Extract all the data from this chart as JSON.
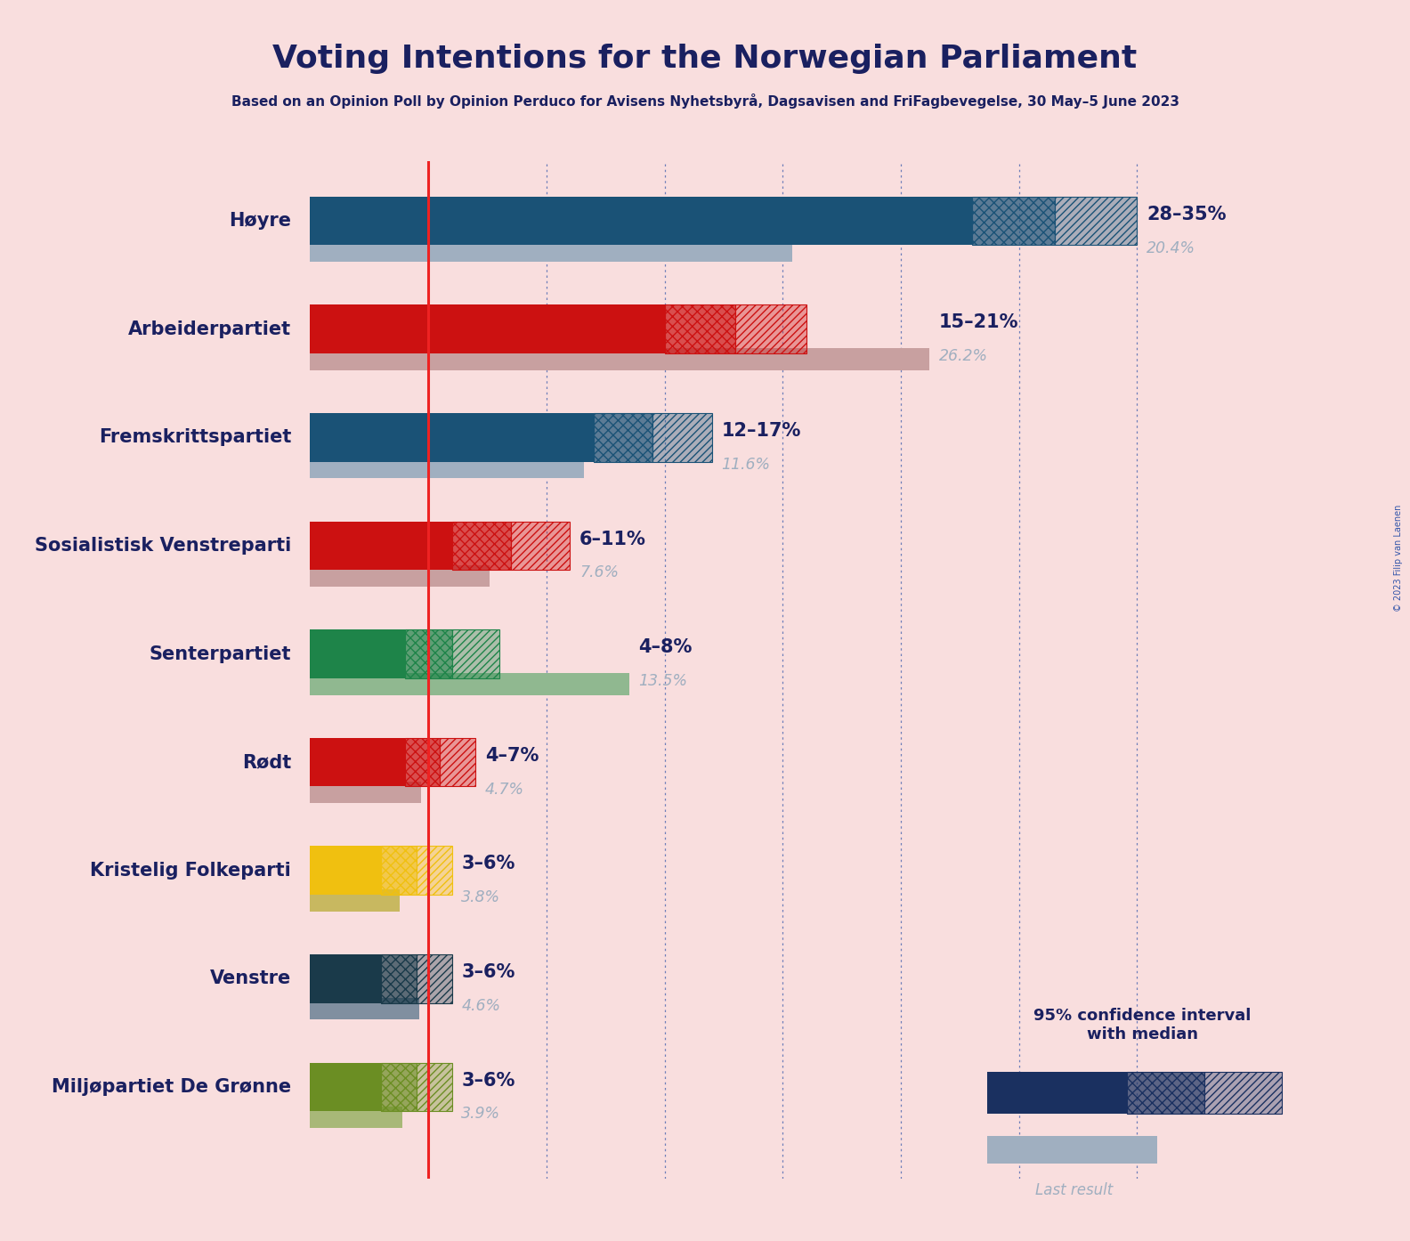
{
  "title": "Voting Intentions for the Norwegian Parliament",
  "subtitle": "Based on an Opinion Poll by Opinion Perduco for Avisens Nyhetsbyrå, Dagsavisen and FriFagbevegelse, 30 May–5 June 2023",
  "background_color": "#f9dede",
  "parties": [
    "Høyre",
    "Arbeiderpartiet",
    "Fremskrittspartiet",
    "Sosialistisk Venstreparti",
    "Senterpartiet",
    "Rødt",
    "Kristelig Folkeparti",
    "Venstre",
    "Miljøpartiet De Grønne"
  ],
  "ci_low": [
    28,
    15,
    12,
    6,
    4,
    4,
    3,
    3,
    3
  ],
  "ci_high": [
    35,
    21,
    17,
    11,
    8,
    7,
    6,
    6,
    6
  ],
  "last_result": [
    20.4,
    26.2,
    11.6,
    7.6,
    13.5,
    4.7,
    3.8,
    4.6,
    3.9
  ],
  "range_labels": [
    "28–35%",
    "15–21%",
    "12–17%",
    "6–11%",
    "4–8%",
    "4–7%",
    "3–6%",
    "3–6%",
    "3–6%"
  ],
  "last_labels": [
    "20.4%",
    "26.2%",
    "11.6%",
    "7.6%",
    "13.5%",
    "4.7%",
    "3.8%",
    "4.6%",
    "3.9%"
  ],
  "colors": [
    "#1a5276",
    "#cc1111",
    "#1a5276",
    "#cc1111",
    "#1e8449",
    "#cc1111",
    "#f0c010",
    "#1a3a4a",
    "#6b8e23"
  ],
  "last_result_colors": [
    "#a0afc0",
    "#c8a0a0",
    "#a0afc0",
    "#c8a0a0",
    "#90b890",
    "#c8a0a0",
    "#c8b860",
    "#808fa0",
    "#a8b878"
  ],
  "title_color": "#1a2060",
  "subtitle_color": "#1a2060",
  "label_color": "#1a2060",
  "last_result_text_color": "#a0afc0",
  "red_line_x": 5.0,
  "grid_lines": [
    5,
    10,
    15,
    20,
    25,
    30,
    35
  ],
  "xlim_max": 37,
  "legend_label": "95% confidence interval\nwith median",
  "last_result_label": "Last result",
  "copyright": "© 2023 Filip van Laenen"
}
